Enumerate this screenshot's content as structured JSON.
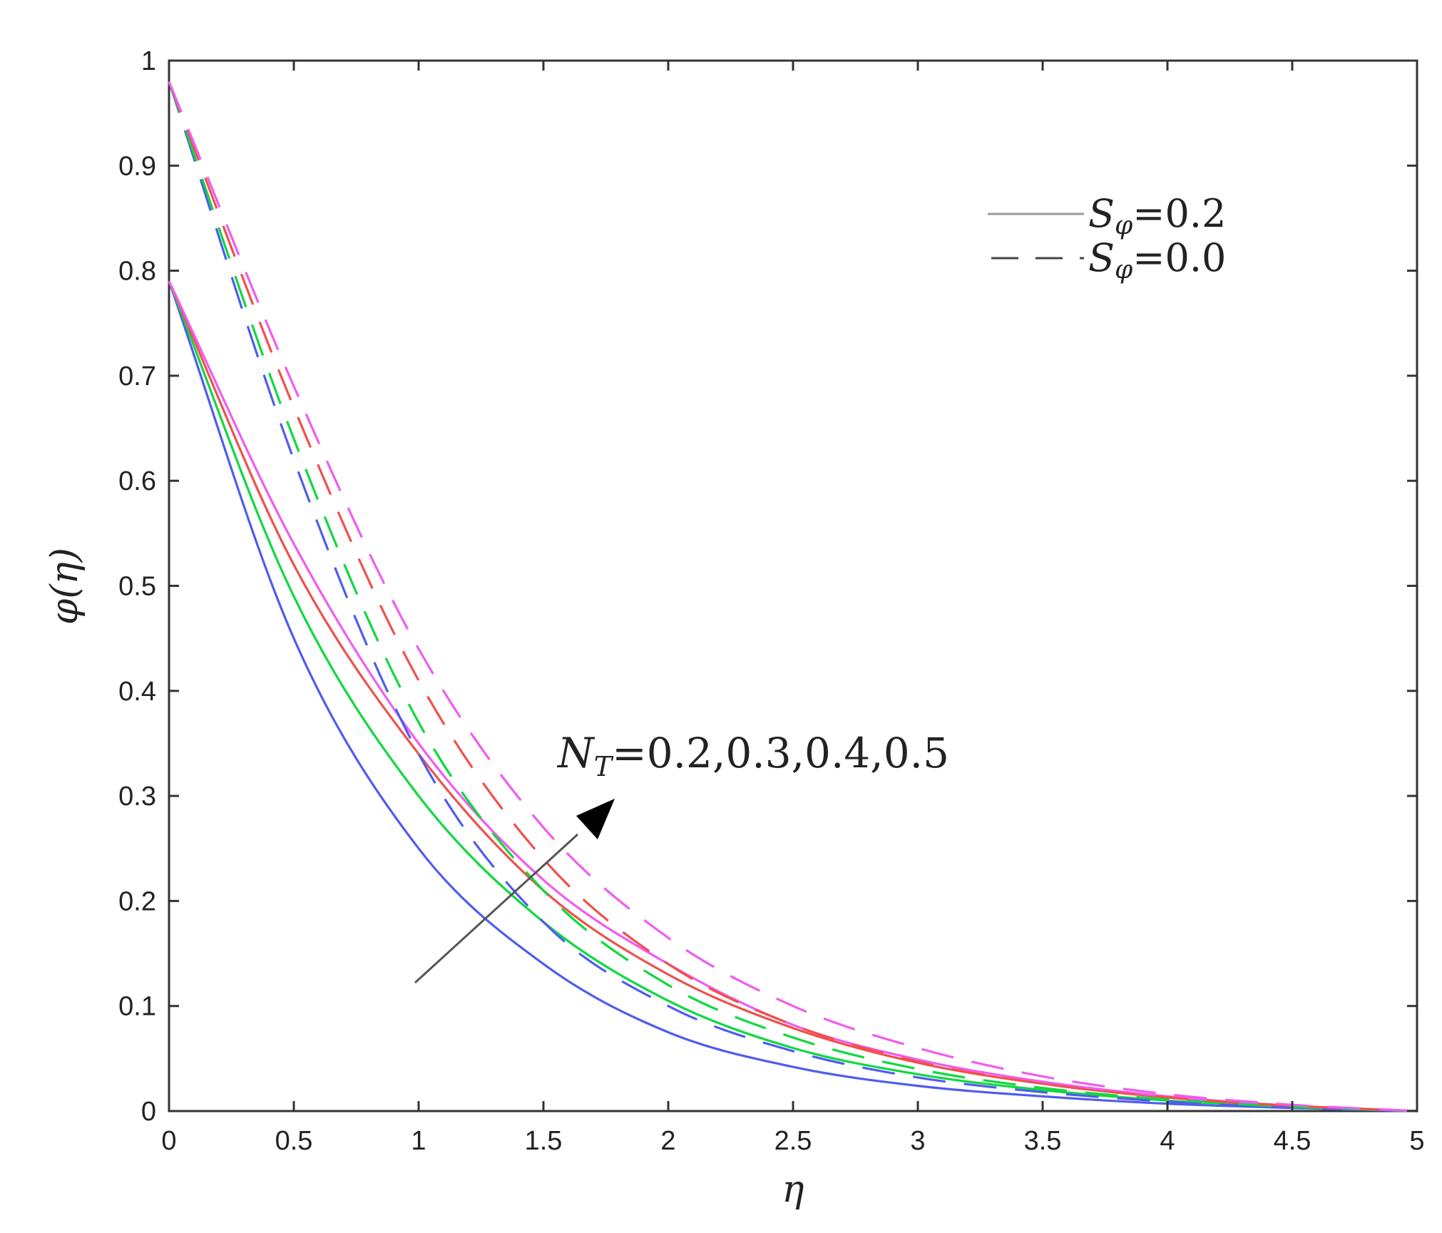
{
  "chart_data": {
    "type": "line",
    "title": "",
    "xlabel": "η",
    "ylabel": "φ(η)",
    "xlim": [
      0,
      5
    ],
    "ylim": [
      0,
      1
    ],
    "x_ticks": [
      "0",
      "0.5",
      "1",
      "1.5",
      "2",
      "2.5",
      "3",
      "3.5",
      "4",
      "4.5",
      "5"
    ],
    "y_ticks": [
      "0",
      "0.1",
      "0.2",
      "0.3",
      "0.4",
      "0.5",
      "0.6",
      "0.7",
      "0.8",
      "0.9",
      "1"
    ],
    "grid": false,
    "legend_position": "top-right",
    "legend": [
      {
        "symbol": "S",
        "subscript": "φ",
        "value": "=0.2",
        "style": "solid"
      },
      {
        "symbol": "S",
        "subscript": "φ",
        "value": "=0.0",
        "style": "dashed"
      }
    ],
    "annotation": {
      "symbol": "N",
      "subscript": "T",
      "text": "=0.2,0.3,0.4,0.5"
    },
    "x": [
      0,
      0.5,
      1,
      1.5,
      2,
      2.5,
      3,
      3.5,
      4,
      4.5,
      5
    ],
    "series": [
      {
        "color": "#4f5cf0",
        "style": "solid",
        "values": [
          0.79,
          0.45,
          0.25,
          0.14,
          0.075,
          0.042,
          0.024,
          0.014,
          0.007,
          0.003,
          0
        ]
      },
      {
        "color": "#10d840",
        "style": "solid",
        "values": [
          0.79,
          0.49,
          0.3,
          0.18,
          0.105,
          0.06,
          0.035,
          0.02,
          0.01,
          0.004,
          0
        ]
      },
      {
        "color": "#f0504c",
        "style": "solid",
        "values": [
          0.79,
          0.52,
          0.34,
          0.21,
          0.13,
          0.079,
          0.046,
          0.026,
          0.013,
          0.005,
          0
        ]
      },
      {
        "color": "#f05cf0",
        "style": "solid",
        "values": [
          0.79,
          0.54,
          0.35,
          0.22,
          0.14,
          0.082,
          0.049,
          0.028,
          0.014,
          0.005,
          0
        ]
      },
      {
        "color": "#4f5cf0",
        "style": "dashed",
        "values": [
          0.98,
          0.62,
          0.34,
          0.18,
          0.1,
          0.057,
          0.032,
          0.018,
          0.009,
          0.003,
          0
        ]
      },
      {
        "color": "#10d840",
        "style": "dashed",
        "values": [
          0.98,
          0.64,
          0.37,
          0.21,
          0.12,
          0.07,
          0.04,
          0.022,
          0.011,
          0.004,
          0
        ]
      },
      {
        "color": "#f0504c",
        "style": "dashed",
        "values": [
          0.98,
          0.67,
          0.41,
          0.24,
          0.14,
          0.082,
          0.047,
          0.026,
          0.013,
          0.005,
          0
        ]
      },
      {
        "color": "#f05cf0",
        "style": "dashed",
        "values": [
          0.98,
          0.69,
          0.44,
          0.27,
          0.165,
          0.1,
          0.06,
          0.033,
          0.016,
          0.006,
          0
        ]
      }
    ]
  }
}
